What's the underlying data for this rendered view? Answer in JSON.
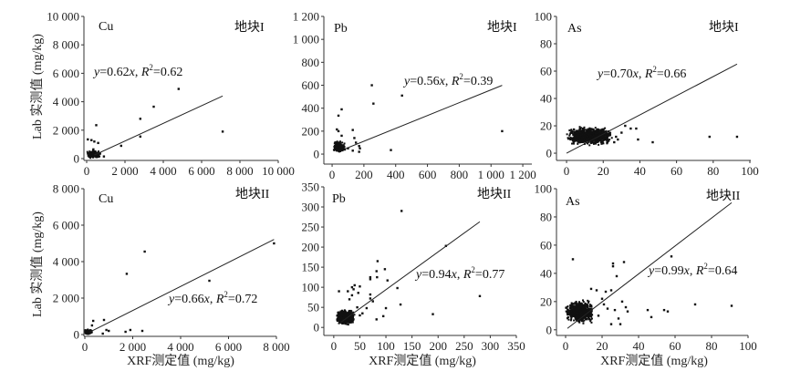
{
  "y_axis_label": "Lab 实测值 (mg/kg)",
  "x_axis_label": "XRF测定值 (mg/kg)",
  "colors": {
    "points": "#111111",
    "line": "#222222",
    "axis": "#333333"
  },
  "chart_data": [
    {
      "type": "scatter",
      "element": "Cu",
      "site": "地块I",
      "xlim": [
        -143,
        10000
      ],
      "ylim": [
        -128,
        10000
      ],
      "xticks": [
        0,
        2000,
        4000,
        6000,
        8000,
        10000
      ],
      "xtick_labels": [
        "0",
        "2 000",
        "4 000",
        "6 000",
        "8 000",
        "10 000"
      ],
      "yticks": [
        0,
        2000,
        4000,
        6000,
        8000,
        10000
      ],
      "ytick_labels": [
        "0",
        "2 000",
        "4 000",
        "6 000",
        "8 000",
        "10 000"
      ],
      "fit": {
        "slope": 0.62,
        "r2": 0.62,
        "slope_label": "0.62",
        "r2_label": "0.62",
        "x_range": [
          400,
          7100
        ]
      },
      "points": [
        [
          4800,
          4900
        ],
        [
          3500,
          3650
        ],
        [
          2800,
          2800
        ],
        [
          2800,
          1550
        ],
        [
          7100,
          1900
        ],
        [
          1800,
          900
        ],
        [
          500,
          2350
        ],
        [
          60,
          1350
        ],
        [
          250,
          1300
        ],
        [
          400,
          1200
        ],
        [
          600,
          1100
        ],
        [
          900,
          150
        ],
        [
          700,
          350
        ],
        [
          350,
          650
        ],
        [
          450,
          500
        ]
      ],
      "cluster": {
        "x": [
          0,
          700
        ],
        "y": [
          0,
          600
        ],
        "n": 160
      }
    },
    {
      "type": "scatter",
      "element": "Pb",
      "site": "地块I",
      "xlim": [
        -52,
        1257
      ],
      "ylim": [
        -87,
        1200
      ],
      "xticks": [
        0,
        200,
        400,
        600,
        800,
        1000,
        1200
      ],
      "xtick_labels": [
        "0",
        "200",
        "400",
        "600",
        "800",
        "1 000",
        "1 200"
      ],
      "yticks": [
        0,
        200,
        400,
        600,
        800,
        1000,
        1200
      ],
      "ytick_labels": [
        "0",
        "200",
        "400",
        "600",
        "800",
        "1 000",
        "1 200"
      ],
      "fit": {
        "slope": 0.56,
        "r2": 0.39,
        "slope_label": "0.56",
        "r2_label": "0.39",
        "x_range": [
          80,
          1070
        ]
      },
      "points": [
        [
          250,
          600
        ],
        [
          260,
          440
        ],
        [
          440,
          510
        ],
        [
          60,
          390
        ],
        [
          40,
          335
        ],
        [
          30,
          215
        ],
        [
          40,
          200
        ],
        [
          60,
          160
        ],
        [
          130,
          210
        ],
        [
          140,
          140
        ],
        [
          150,
          100
        ],
        [
          170,
          70
        ],
        [
          175,
          50
        ],
        [
          170,
          20
        ],
        [
          130,
          30
        ],
        [
          370,
          35
        ],
        [
          1070,
          200
        ],
        [
          100,
          50
        ],
        [
          80,
          40
        ]
      ],
      "cluster": {
        "x": [
          10,
          80
        ],
        "y": [
          10,
          120
        ],
        "n": 220
      }
    },
    {
      "type": "scatter",
      "element": "As",
      "site": "地块I",
      "xlim": [
        -5.5,
        100.5
      ],
      "ylim": [
        -5.3,
        100
      ],
      "xticks": [
        0,
        20,
        40,
        60,
        80,
        100
      ],
      "xtick_labels": [
        "0",
        "20",
        "40",
        "60",
        "80",
        "100"
      ],
      "yticks": [
        0,
        20,
        40,
        60,
        80,
        100
      ],
      "ytick_labels": [
        "0",
        "20",
        "40",
        "60",
        "80",
        "100"
      ],
      "fit": {
        "slope": 0.7,
        "r2": 0.66,
        "slope_label": "0.70",
        "r2_label": "0.66",
        "x_range": [
          0,
          93
        ]
      },
      "points": [
        [
          28,
          10
        ],
        [
          30,
          15
        ],
        [
          32,
          20
        ],
        [
          35,
          18
        ],
        [
          38,
          18
        ],
        [
          39,
          10
        ],
        [
          47,
          8
        ],
        [
          78,
          12
        ],
        [
          93,
          12
        ],
        [
          26,
          8
        ],
        [
          27,
          12
        ]
      ],
      "cluster": {
        "x": [
          0,
          25
        ],
        "y": [
          5,
          20
        ],
        "n": 900
      }
    },
    {
      "type": "scatter",
      "element": "Cu",
      "site": "地块II",
      "xlim": [
        -38,
        8000
      ],
      "ylim": [
        -100,
        8000
      ],
      "xticks": [
        0,
        2000,
        4000,
        6000,
        8000
      ],
      "xtick_labels": [
        "0",
        "2 000",
        "4 000",
        "6 000",
        "8 000"
      ],
      "yticks": [
        0,
        2000,
        4000,
        6000,
        8000
      ],
      "ytick_labels": [
        "0",
        "2 000",
        "4 000",
        "6 000",
        "8 000"
      ],
      "fit": {
        "slope": 0.66,
        "r2": 0.72,
        "slope_label": "0.66",
        "r2_label": "0.72",
        "x_range": [
          200,
          7900
        ]
      },
      "points": [
        [
          2500,
          4550
        ],
        [
          1750,
          3330
        ],
        [
          5200,
          2950
        ],
        [
          7900,
          5000
        ],
        [
          800,
          800
        ],
        [
          350,
          750
        ],
        [
          900,
          250
        ],
        [
          1000,
          200
        ],
        [
          1700,
          150
        ],
        [
          1900,
          250
        ],
        [
          2400,
          200
        ],
        [
          750,
          50
        ],
        [
          300,
          500
        ]
      ],
      "cluster": {
        "x": [
          0,
          300
        ],
        "y": [
          0,
          300
        ],
        "n": 160
      }
    },
    {
      "type": "scatter",
      "element": "Pb",
      "site": "地块II",
      "xlim": [
        -19,
        350
      ],
      "ylim": [
        -20,
        350
      ],
      "xticks": [
        0,
        50,
        100,
        150,
        200,
        250,
        300,
        350
      ],
      "xtick_labels": [
        "0",
        "50",
        "100",
        "150",
        "200",
        "250",
        "300",
        "350"
      ],
      "yticks": [
        0,
        50,
        100,
        150,
        200,
        250,
        300,
        350
      ],
      "ytick_labels": [
        "0",
        "50",
        "100",
        "150",
        "200",
        "250",
        "300",
        "350"
      ],
      "fit": {
        "slope": 0.94,
        "r2": 0.77,
        "slope_label": "0.94",
        "r2_label": "0.77",
        "x_range": [
          10,
          280
        ]
      },
      "points": [
        [
          130,
          290
        ],
        [
          215,
          203
        ],
        [
          280,
          78
        ],
        [
          190,
          33
        ],
        [
          128,
          57
        ],
        [
          122,
          98
        ],
        [
          103,
          117
        ],
        [
          98,
          145
        ],
        [
          84,
          165
        ],
        [
          82,
          140
        ],
        [
          70,
          125
        ],
        [
          70,
          120
        ],
        [
          100,
          48
        ],
        [
          95,
          28
        ],
        [
          82,
          20
        ],
        [
          10,
          90
        ],
        [
          27,
          90
        ],
        [
          35,
          100
        ],
        [
          40,
          105
        ],
        [
          50,
          102
        ],
        [
          47,
          86
        ],
        [
          70,
          82
        ],
        [
          75,
          65
        ],
        [
          63,
          48
        ],
        [
          55,
          35
        ],
        [
          70,
          72
        ],
        [
          83,
          125
        ],
        [
          38,
          95
        ],
        [
          35,
          80
        ],
        [
          30,
          70
        ],
        [
          45,
          50
        ],
        [
          50,
          30
        ]
      ],
      "cluster": {
        "x": [
          5,
          40
        ],
        "y": [
          5,
          45
        ],
        "n": 700
      }
    },
    {
      "type": "scatter",
      "element": "As",
      "site": "地块II",
      "xlim": [
        -5,
        100
      ],
      "ylim": [
        -4,
        100
      ],
      "xticks": [
        0,
        20,
        40,
        60,
        80,
        100
      ],
      "xtick_labels": [
        "0",
        "20",
        "40",
        "60",
        "80",
        "100"
      ],
      "yticks": [
        0,
        20,
        40,
        60,
        80,
        100
      ],
      "ytick_labels": [
        "0",
        "20",
        "40",
        "60",
        "80",
        "100"
      ],
      "fit": {
        "slope": 0.99,
        "r2": 0.64,
        "slope_label": "0.99",
        "r2_label": "0.64",
        "x_range": [
          1,
          91
        ]
      },
      "points": [
        [
          4,
          50
        ],
        [
          58,
          52
        ],
        [
          32,
          48
        ],
        [
          26,
          47
        ],
        [
          26,
          45
        ],
        [
          28,
          38
        ],
        [
          14,
          29
        ],
        [
          17,
          28
        ],
        [
          22,
          27
        ],
        [
          25,
          28
        ],
        [
          45,
          14
        ],
        [
          47,
          9
        ],
        [
          54,
          14
        ],
        [
          56,
          13
        ],
        [
          71,
          18
        ],
        [
          91,
          17
        ],
        [
          31,
          20
        ],
        [
          33,
          16
        ],
        [
          25,
          4
        ],
        [
          30,
          4
        ],
        [
          27,
          14
        ],
        [
          34,
          13
        ],
        [
          20,
          22
        ],
        [
          18,
          10
        ],
        [
          23,
          15
        ],
        [
          29,
          8
        ],
        [
          21,
          18
        ]
      ],
      "cluster": {
        "x": [
          0,
          15
        ],
        "y": [
          4,
          22
        ],
        "n": 700
      }
    }
  ]
}
